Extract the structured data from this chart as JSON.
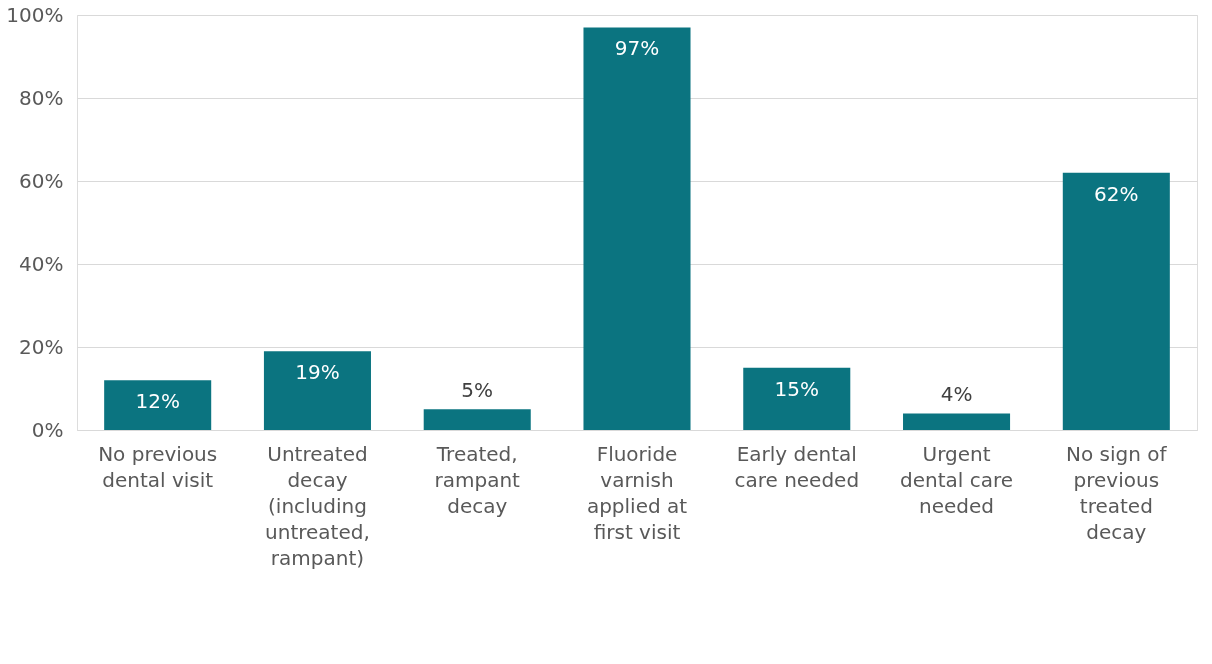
{
  "chart_data": {
    "type": "bar",
    "categories": [
      "No previous dental visit",
      "Untreated decay (including untreated, rampant)",
      "Treated, rampant decay",
      "Fluoride varnish applied at first visit",
      "Early dental care needed",
      "Urgent dental care needed",
      "No sign of previous treated decay"
    ],
    "values": [
      12,
      19,
      5,
      97,
      15,
      4,
      62
    ],
    "value_labels": [
      "12%",
      "19%",
      "5%",
      "97%",
      "15%",
      "4%",
      "62%"
    ],
    "color": "#0b7480",
    "ylim": [
      0,
      100
    ],
    "yticks": [
      {
        "value": 0,
        "label": "0%"
      },
      {
        "value": 20,
        "label": "20%"
      },
      {
        "value": 40,
        "label": "40%"
      },
      {
        "value": 60,
        "label": "60%"
      },
      {
        "value": 80,
        "label": "80%"
      },
      {
        "value": 100,
        "label": "100%"
      }
    ],
    "grid": "y"
  }
}
